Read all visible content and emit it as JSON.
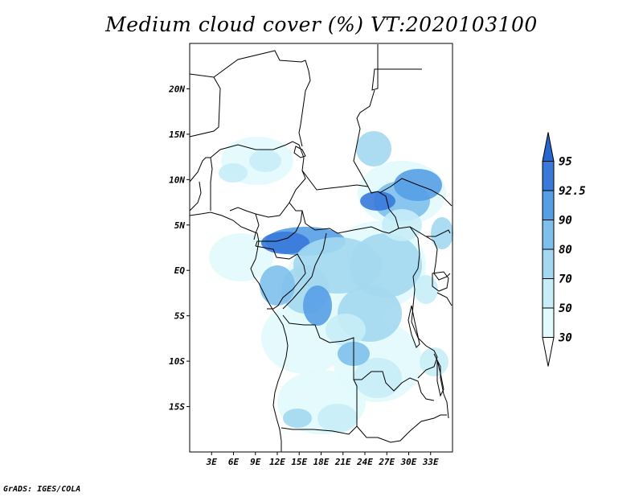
{
  "title": "Medium cloud cover (%) VT:2020103100",
  "credit": "GrADS: IGES/COLA",
  "map": {
    "lon_range": [
      0,
      36
    ],
    "lat_range": [
      -20,
      25
    ],
    "lat_ticks": [
      {
        "value": 20,
        "label": "20N"
      },
      {
        "value": 15,
        "label": "15N"
      },
      {
        "value": 10,
        "label": "10N"
      },
      {
        "value": 5,
        "label": "5N"
      },
      {
        "value": 0,
        "label": "EQ"
      },
      {
        "value": -5,
        "label": "5S"
      },
      {
        "value": -10,
        "label": "10S"
      },
      {
        "value": -15,
        "label": "15S"
      }
    ],
    "lon_ticks": [
      {
        "value": 3,
        "label": "3E"
      },
      {
        "value": 6,
        "label": "6E"
      },
      {
        "value": 9,
        "label": "9E"
      },
      {
        "value": 12,
        "label": "12E"
      },
      {
        "value": 15,
        "label": "15E"
      },
      {
        "value": 18,
        "label": "18E"
      },
      {
        "value": 21,
        "label": "21E"
      },
      {
        "value": 24,
        "label": "24E"
      },
      {
        "value": 27,
        "label": "27E"
      },
      {
        "value": 30,
        "label": "30E"
      },
      {
        "value": 33,
        "label": "33E"
      }
    ]
  },
  "colorbar": {
    "levels": [
      "30",
      "50",
      "70",
      "80",
      "90",
      "92.5",
      "95"
    ],
    "colors": [
      "#ffffff",
      "#e1fafc",
      "#c7edf7",
      "#a3d8f0",
      "#7ec0ec",
      "#569fe5",
      "#3879da",
      "#2567cc"
    ]
  }
}
